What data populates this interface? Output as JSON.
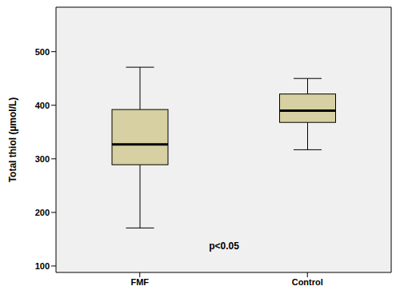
{
  "chart_data": {
    "type": "box",
    "categories": [
      "FMF",
      "Control"
    ],
    "y_label": "Total thiol (µmol/L)",
    "annotation": "p<0.05",
    "stats": {
      "min": [
        171,
        317
      ],
      "q1": [
        289,
        368
      ],
      "median": [
        327,
        390
      ],
      "q3": [
        392,
        421
      ],
      "max": [
        471,
        450
      ]
    },
    "color": "#d6d0a2",
    "ylim": [
      88,
      583
    ],
    "yticks": [
      100,
      200,
      300,
      400,
      500
    ],
    "grid": false
  }
}
